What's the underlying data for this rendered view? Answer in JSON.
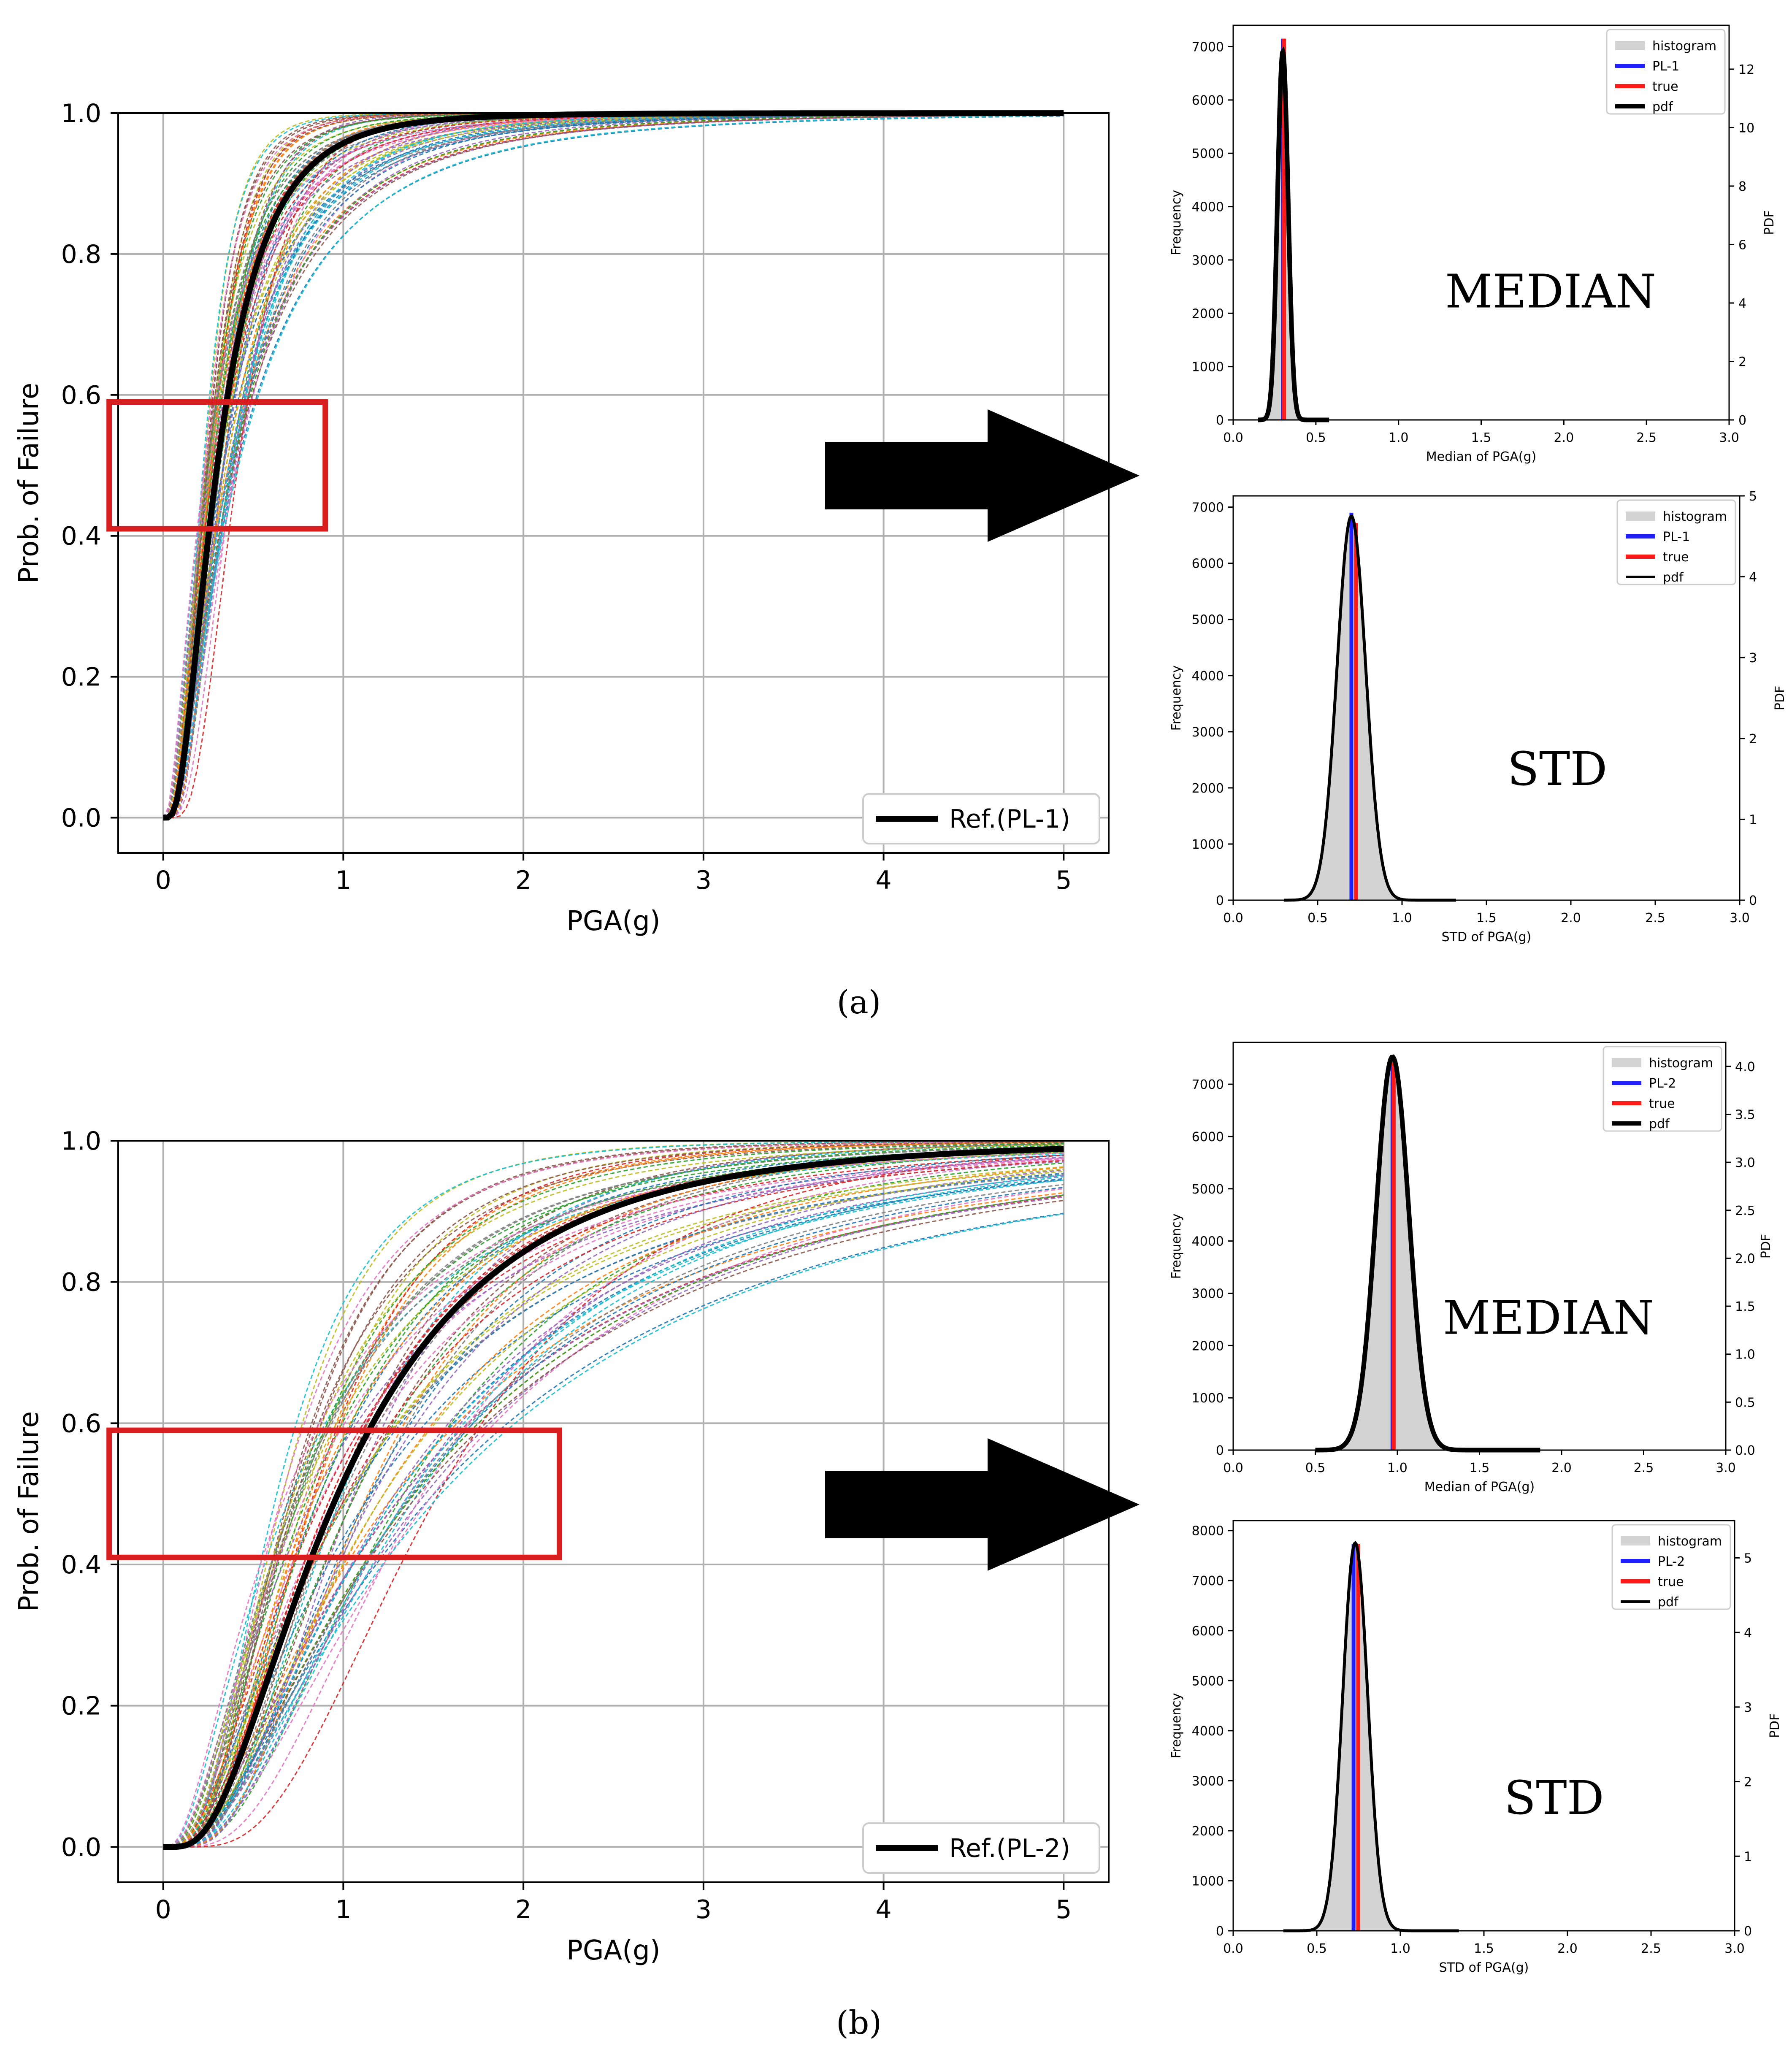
{
  "panel_labels": [
    "(a)",
    "(b)"
  ],
  "colors": {
    "ref_line": "#000000",
    "highlight_box": "#d81e1e",
    "histogram_fill": "#d3d3d3",
    "pl_line": "#1f1fff",
    "true_line": "#ff1a1a",
    "pdf_line": "#000000",
    "grid": "#b0b0b0",
    "arrow": "#000000",
    "sample_palette": [
      "#1f77b4",
      "#ff7f0e",
      "#2ca02c",
      "#d62728",
      "#9467bd",
      "#8c564b",
      "#e377c2",
      "#7f7f7f",
      "#bcbd22",
      "#17becf"
    ]
  },
  "chart_data": [
    {
      "id": "a-fragility",
      "type": "line",
      "title": "",
      "xlabel": "PGA(g)",
      "ylabel": "Prob. of Failure",
      "xlim": [
        -0.25,
        5.25
      ],
      "ylim": [
        -0.05,
        1.0
      ],
      "xticks": [
        0,
        1,
        2,
        3,
        4,
        5
      ],
      "xtick_labels": [
        "0",
        "1",
        "2",
        "3",
        "4",
        "5"
      ],
      "yticks": [
        0.0,
        0.2,
        0.4,
        0.6,
        0.8,
        1.0
      ],
      "ytick_labels": [
        "0.0",
        "0.2",
        "0.4",
        "0.6",
        "0.8",
        "1.0"
      ],
      "grid": true,
      "legend": [
        "Ref.(PL-1)"
      ],
      "legend_position": "lower-right",
      "reference": {
        "median": 0.3,
        "beta": 0.7
      },
      "samples": {
        "median_range": [
          0.22,
          0.42
        ],
        "beta_range": [
          0.5,
          0.95
        ],
        "count": 70
      },
      "highlight_box": {
        "x": [
          -0.3,
          0.9
        ],
        "y": [
          0.41,
          0.59
        ]
      }
    },
    {
      "id": "a-median",
      "type": "bar",
      "annotation": "MEDIAN",
      "xlabel": "Median of PGA(g)",
      "ylabel": "Frequency",
      "ylabel2": "PDF",
      "xlim": [
        0.0,
        3.0
      ],
      "ylim": [
        0,
        7400
      ],
      "y2lim": [
        0,
        13.5
      ],
      "xticks": [
        0.0,
        0.5,
        1.0,
        1.5,
        2.0,
        2.5,
        3.0
      ],
      "xtick_labels": [
        "0.0",
        "0.5",
        "1.0",
        "1.5",
        "2.0",
        "2.5",
        "3.0"
      ],
      "yticks": [
        0,
        1000,
        2000,
        3000,
        4000,
        5000,
        6000,
        7000
      ],
      "ytick_labels": [
        "0",
        "1000",
        "2000",
        "3000",
        "4000",
        "5000",
        "6000",
        "7000"
      ],
      "y2ticks": [
        0,
        2,
        4,
        6,
        8,
        10,
        12
      ],
      "y2tick_labels": [
        "0",
        "2",
        "4",
        "6",
        "8",
        "10",
        "12"
      ],
      "legend": [
        "histogram",
        "PL-1",
        "true",
        "pdf"
      ],
      "legend_position": "top-right",
      "histogram": {
        "mean": 0.3,
        "sd": 0.032,
        "peak": 7150,
        "range": [
          0.15,
          0.58
        ]
      },
      "pdf_peak": 12.6,
      "pl_value": 0.3,
      "true_value": 0.3
    },
    {
      "id": "a-std",
      "type": "bar",
      "annotation": "STD",
      "xlabel": "STD of PGA(g)",
      "ylabel": "Frequency",
      "ylabel2": "PDF",
      "xlim": [
        0.0,
        3.0
      ],
      "ylim": [
        0,
        7200
      ],
      "y2lim": [
        0,
        5.0
      ],
      "xticks": [
        0.0,
        0.5,
        1.0,
        1.5,
        2.0,
        2.5,
        3.0
      ],
      "xtick_labels": [
        "0.0",
        "0.5",
        "1.0",
        "1.5",
        "2.0",
        "2.5",
        "3.0"
      ],
      "yticks": [
        0,
        1000,
        2000,
        3000,
        4000,
        5000,
        6000,
        7000
      ],
      "ytick_labels": [
        "0",
        "1000",
        "2000",
        "3000",
        "4000",
        "5000",
        "6000",
        "7000"
      ],
      "y2ticks": [
        0,
        1,
        2,
        3,
        4,
        5
      ],
      "y2tick_labels": [
        "0",
        "1",
        "2",
        "3",
        "4",
        "5"
      ],
      "legend": [
        "histogram",
        "PL-1",
        "true",
        "pdf"
      ],
      "legend_position": "top-right",
      "histogram": {
        "mean": 0.7,
        "sd": 0.085,
        "peak": 6900,
        "range": [
          0.3,
          1.32
        ]
      },
      "pdf_peak": 4.75,
      "pl_value": 0.7,
      "true_value": 0.72
    },
    {
      "id": "b-fragility",
      "type": "line",
      "title": "",
      "xlabel": "PGA(g)",
      "ylabel": "Prob. of Failure",
      "xlim": [
        -0.25,
        5.25
      ],
      "ylim": [
        -0.05,
        1.0
      ],
      "xticks": [
        0,
        1,
        2,
        3,
        4,
        5
      ],
      "xtick_labels": [
        "0",
        "1",
        "2",
        "3",
        "4",
        "5"
      ],
      "yticks": [
        0.0,
        0.2,
        0.4,
        0.6,
        0.8,
        1.0
      ],
      "ytick_labels": [
        "0.0",
        "0.2",
        "0.4",
        "0.6",
        "0.8",
        "1.0"
      ],
      "grid": true,
      "legend": [
        "Ref.(PL-2)"
      ],
      "legend_position": "lower-right",
      "reference": {
        "median": 0.97,
        "beta": 0.72
      },
      "samples": {
        "median_range": [
          0.62,
          1.55
        ],
        "beta_range": [
          0.55,
          0.95
        ],
        "count": 70
      },
      "highlight_box": {
        "x": [
          -0.3,
          2.2
        ],
        "y": [
          0.41,
          0.59
        ]
      }
    },
    {
      "id": "b-median",
      "type": "bar",
      "annotation": "MEDIAN",
      "xlabel": "Median of PGA(g)",
      "ylabel": "Frequency",
      "ylabel2": "PDF",
      "xlim": [
        0.0,
        3.0
      ],
      "ylim": [
        0,
        7800
      ],
      "y2lim": [
        0,
        4.25
      ],
      "xticks": [
        0.0,
        0.5,
        1.0,
        1.5,
        2.0,
        2.5,
        3.0
      ],
      "xtick_labels": [
        "0.0",
        "0.5",
        "1.0",
        "1.5",
        "2.0",
        "2.5",
        "3.0"
      ],
      "yticks": [
        0,
        1000,
        2000,
        3000,
        4000,
        5000,
        6000,
        7000
      ],
      "ytick_labels": [
        "0",
        "1000",
        "2000",
        "3000",
        "4000",
        "5000",
        "6000",
        "7000"
      ],
      "y2ticks": [
        0.0,
        0.5,
        1.0,
        1.5,
        2.0,
        2.5,
        3.0,
        3.5,
        4.0
      ],
      "y2tick_labels": [
        "0.0",
        "0.5",
        "1.0",
        "1.5",
        "2.0",
        "2.5",
        "3.0",
        "3.5",
        "4.0"
      ],
      "legend": [
        "histogram",
        "PL-2",
        "true",
        "pdf"
      ],
      "legend_position": "top-right",
      "histogram": {
        "mean": 0.97,
        "sd": 0.1,
        "peak": 7500,
        "range": [
          0.5,
          1.87
        ]
      },
      "pdf_peak": 4.1,
      "pl_value": 0.97,
      "true_value": 0.97
    },
    {
      "id": "b-std",
      "type": "bar",
      "annotation": "STD",
      "xlabel": "STD of PGA(g)",
      "ylabel": "Frequency",
      "ylabel2": "PDF",
      "xlim": [
        0.0,
        3.0
      ],
      "ylim": [
        0,
        8200
      ],
      "y2lim": [
        0,
        5.5
      ],
      "xticks": [
        0.0,
        0.5,
        1.0,
        1.5,
        2.0,
        2.5,
        3.0
      ],
      "xtick_labels": [
        "0.0",
        "0.5",
        "1.0",
        "1.5",
        "2.0",
        "2.5",
        "3.0"
      ],
      "yticks": [
        0,
        1000,
        2000,
        3000,
        4000,
        5000,
        6000,
        7000,
        8000
      ],
      "ytick_labels": [
        "0",
        "1000",
        "2000",
        "3000",
        "4000",
        "5000",
        "6000",
        "7000",
        "8000"
      ],
      "y2ticks": [
        0,
        1,
        2,
        3,
        4,
        5
      ],
      "y2tick_labels": [
        "0",
        "1",
        "2",
        "3",
        "4",
        "5"
      ],
      "legend": [
        "histogram",
        "PL-2",
        "true",
        "pdf"
      ],
      "legend_position": "top-right",
      "histogram": {
        "mean": 0.73,
        "sd": 0.075,
        "peak": 7800,
        "range": [
          0.3,
          1.35
        ]
      },
      "pdf_peak": 5.2,
      "pl_value": 0.72,
      "true_value": 0.74
    }
  ]
}
